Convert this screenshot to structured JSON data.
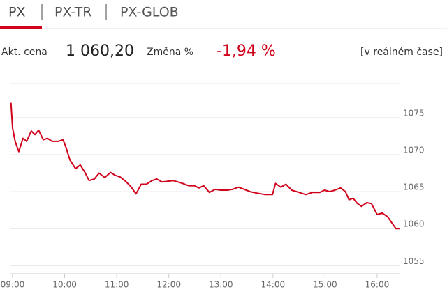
{
  "tabs": [
    "PX",
    "PX-TR",
    "PX-GLOB"
  ],
  "info": {
    "price_label": "Akt. cena",
    "price": "1 060,20",
    "change_label": "Změna %",
    "change": "-1,94 %",
    "mode": "[v reálném čase]"
  },
  "chart_data": {
    "type": "line",
    "x": [
      8.97,
      9.0,
      9.05,
      9.12,
      9.2,
      9.27,
      9.36,
      9.43,
      9.5,
      9.59,
      9.67,
      9.76,
      9.87,
      9.97,
      10.03,
      10.1,
      10.21,
      10.3,
      10.39,
      10.47,
      10.57,
      10.66,
      10.77,
      10.88,
      10.97,
      11.06,
      11.17,
      11.28,
      11.37,
      11.47,
      11.57,
      11.68,
      11.77,
      11.87,
      11.98,
      12.08,
      12.18,
      12.27,
      12.38,
      12.49,
      12.58,
      12.67,
      12.78,
      12.89,
      13.0,
      13.12,
      13.22,
      13.34,
      13.45,
      13.56,
      13.69,
      13.85,
      13.99,
      14.05,
      14.15,
      14.25,
      14.36,
      14.5,
      14.63,
      14.76,
      14.9,
      14.99,
      15.09,
      15.19,
      15.3,
      15.39,
      15.46,
      15.54,
      15.62,
      15.7,
      15.8,
      15.89,
      16.0,
      16.1,
      16.2,
      16.29,
      16.36,
      16.43
    ],
    "series": [
      {
        "name": "PX",
        "color": "#d0021b",
        "values": [
          1077.0,
          1073.6,
          1071.8,
          1070.4,
          1072.2,
          1071.8,
          1073.2,
          1072.7,
          1073.3,
          1072.0,
          1072.2,
          1071.8,
          1071.8,
          1072.0,
          1070.9,
          1069.3,
          1068.1,
          1068.6,
          1067.6,
          1066.5,
          1066.7,
          1067.5,
          1066.9,
          1067.6,
          1067.2,
          1067.0,
          1066.4,
          1065.6,
          1064.7,
          1066.0,
          1066.0,
          1066.5,
          1066.7,
          1066.3,
          1066.4,
          1066.5,
          1066.3,
          1066.1,
          1065.8,
          1065.8,
          1065.5,
          1065.8,
          1064.9,
          1065.3,
          1065.2,
          1065.2,
          1065.3,
          1065.6,
          1065.3,
          1065.0,
          1064.8,
          1064.6,
          1064.6,
          1066.1,
          1065.6,
          1066.0,
          1065.2,
          1064.9,
          1064.6,
          1064.9,
          1064.9,
          1065.2,
          1065.0,
          1065.2,
          1065.5,
          1065.0,
          1063.9,
          1064.1,
          1063.4,
          1063.0,
          1063.5,
          1063.4,
          1061.9,
          1062.1,
          1061.6,
          1060.7,
          1060.0,
          1060.0
        ]
      }
    ],
    "xlim": [
      8.96,
      16.43
    ],
    "xticks": [
      {
        "value": 9,
        "label": "09:00"
      },
      {
        "value": 10,
        "label": "10:00"
      },
      {
        "value": 11,
        "label": "11:00"
      },
      {
        "value": 12,
        "label": "12:00"
      },
      {
        "value": 13,
        "label": "13:00"
      },
      {
        "value": 14,
        "label": "14:00"
      },
      {
        "value": 15,
        "label": "15:00"
      },
      {
        "value": 16,
        "label": "16:00"
      }
    ],
    "ylim": [
      1053.9,
      1079.6
    ],
    "yticks": [
      1055,
      1060,
      1065,
      1070,
      1075
    ],
    "grid": true
  }
}
